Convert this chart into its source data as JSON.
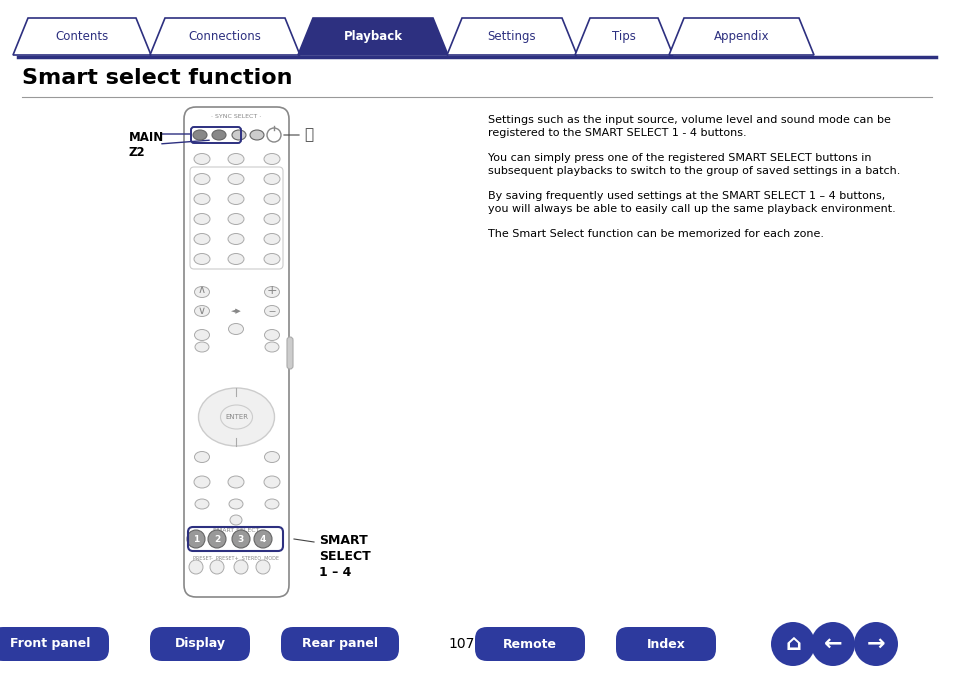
{
  "bg_color": "#ffffff",
  "tab_color_active": "#2d3080",
  "tab_color_inactive": "#ffffff",
  "tab_text_color_active": "#ffffff",
  "tab_text_color_inactive": "#2d3080",
  "tab_border_color": "#2d3080",
  "tabs": [
    "Contents",
    "Connections",
    "Playback",
    "Settings",
    "Tips",
    "Appendix"
  ],
  "active_tab": 2,
  "title": "Smart select function",
  "title_color": "#000000",
  "body_text": [
    "Settings such as the input source, volume level and sound mode can be\nregistered to the SMART SELECT 1 - 4 buttons.",
    "You can simply press one of the registered SMART SELECT buttons in\nsubsequent playbacks to switch to the group of saved settings in a batch.",
    "By saving frequently used settings at the SMART SELECT 1 – 4 buttons,\nyou will always be able to easily call up the same playback environment.",
    "The Smart Select function can be memorized for each zone."
  ],
  "body_text_color": "#000000",
  "label_main_z2": "MAIN\nZ2",
  "label_smart_select": "SMART\nSELECT\n1 – 4",
  "label_color": "#000000",
  "remote_color": "#ffffff",
  "remote_border_color": "#888888",
  "remote_highlight_color": "#2d3080",
  "bottom_buttons": [
    "Front panel",
    "Display",
    "Rear panel",
    "Remote",
    "Index"
  ],
  "bottom_btn_color": "#2d3a9e",
  "bottom_btn_text_color": "#ffffff",
  "page_number": "107",
  "page_number_color": "#000000"
}
